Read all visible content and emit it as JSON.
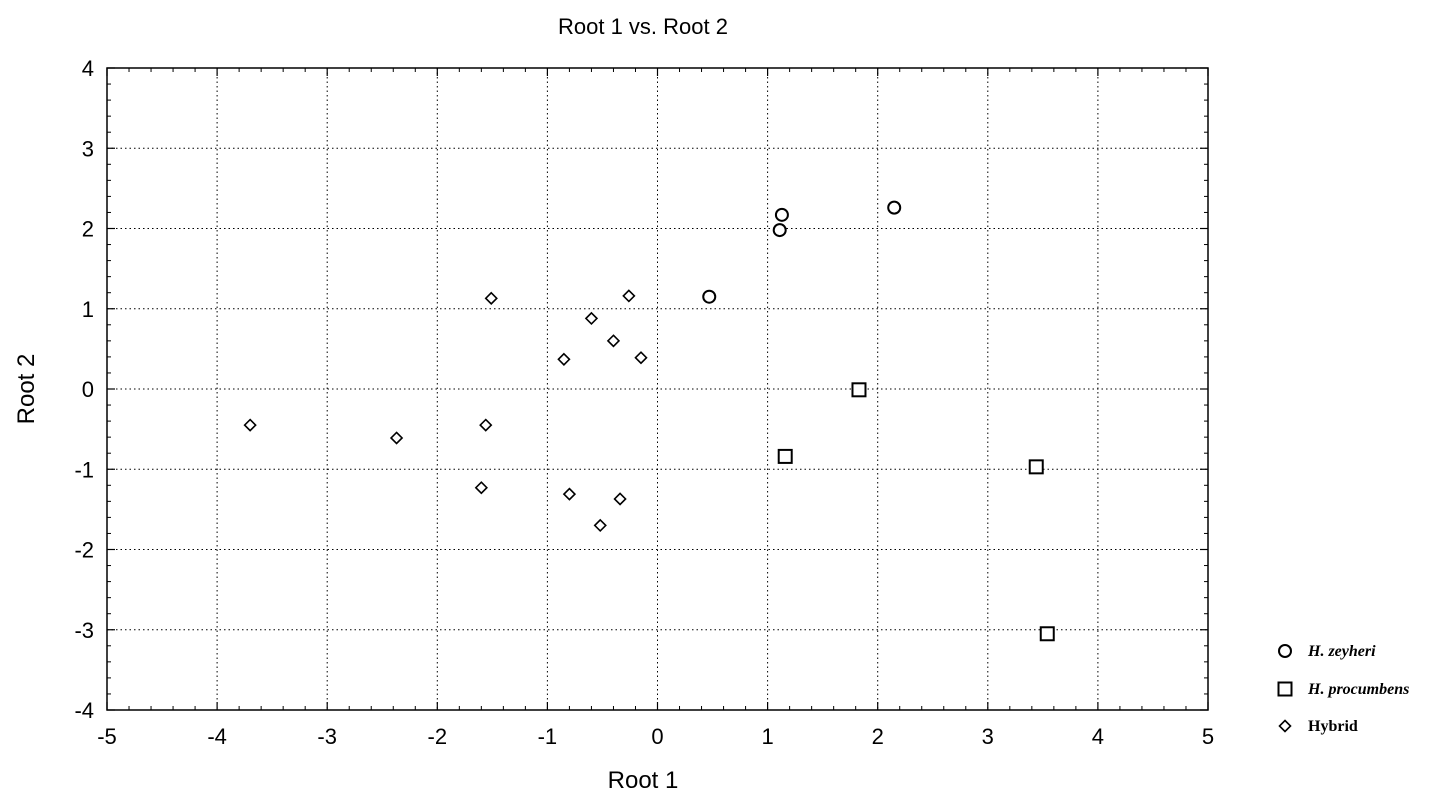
{
  "chart_data": {
    "type": "scatter",
    "title": "Root 1 vs. Root 2",
    "xlabel": "Root 1",
    "ylabel": "Root 2",
    "xlim": [
      -5,
      5
    ],
    "ylim": [
      -4,
      4
    ],
    "xticks": [
      -5,
      -4,
      -3,
      -2,
      -1,
      0,
      1,
      2,
      3,
      4,
      5
    ],
    "yticks": [
      -4,
      -3,
      -2,
      -1,
      0,
      1,
      2,
      3,
      4
    ],
    "grid": true,
    "legend_position": "right-bottom",
    "series": [
      {
        "name": "H. zeyheri",
        "marker": "circle",
        "italic": true,
        "points": [
          {
            "x": 0.47,
            "y": 1.15
          },
          {
            "x": 1.13,
            "y": 2.17
          },
          {
            "x": 1.11,
            "y": 1.98
          },
          {
            "x": 2.15,
            "y": 2.26
          }
        ]
      },
      {
        "name": "H. procumbens",
        "marker": "square",
        "italic": true,
        "points": [
          {
            "x": 1.83,
            "y": -0.01
          },
          {
            "x": 1.16,
            "y": -0.84
          },
          {
            "x": 3.44,
            "y": -0.97
          },
          {
            "x": 3.54,
            "y": -3.05
          }
        ]
      },
      {
        "name": "Hybrid",
        "marker": "diamond",
        "italic": false,
        "points": [
          {
            "x": -3.7,
            "y": -0.45
          },
          {
            "x": -2.37,
            "y": -0.61
          },
          {
            "x": -1.56,
            "y": -0.45
          },
          {
            "x": -1.6,
            "y": -1.23
          },
          {
            "x": -1.51,
            "y": 1.13
          },
          {
            "x": -0.85,
            "y": 0.37
          },
          {
            "x": -0.6,
            "y": 0.88
          },
          {
            "x": -0.4,
            "y": 0.6
          },
          {
            "x": -0.26,
            "y": 1.16
          },
          {
            "x": -0.15,
            "y": 0.39
          },
          {
            "x": -0.8,
            "y": -1.31
          },
          {
            "x": -0.34,
            "y": -1.37
          },
          {
            "x": -0.52,
            "y": -1.7
          }
        ]
      }
    ]
  }
}
